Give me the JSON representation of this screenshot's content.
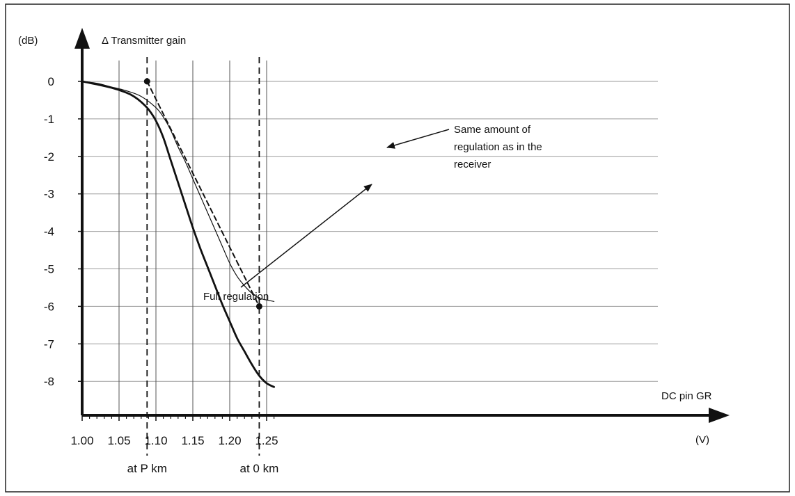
{
  "chart_data": {
    "type": "line",
    "title": "",
    "ylabel": "Δ Transmitter gain",
    "y_unit": "(dB)",
    "x_unit": "(V)",
    "xlabel": "DC pin GR",
    "xlim": [
      1.0,
      1.27
    ],
    "ylim": [
      -9.0,
      1.2
    ],
    "x_ticks": [
      {
        "value": 1.0,
        "label": "1.00"
      },
      {
        "value": 1.05,
        "label": "1.05"
      },
      {
        "value": 1.1,
        "label": "1.10"
      },
      {
        "value": 1.15,
        "label": "1.15"
      },
      {
        "value": 1.2,
        "label": "1.20"
      },
      {
        "value": 1.25,
        "label": "1.25"
      }
    ],
    "y_ticks": [
      {
        "value": 0,
        "label": "0"
      },
      {
        "value": -1,
        "label": "-1"
      },
      {
        "value": -2,
        "label": "-2"
      },
      {
        "value": -3,
        "label": "-3"
      },
      {
        "value": -4,
        "label": "-4"
      },
      {
        "value": -5,
        "label": "-5"
      },
      {
        "value": -6,
        "label": "-6"
      },
      {
        "value": -7,
        "label": "-7"
      },
      {
        "value": -8,
        "label": "-8"
      }
    ],
    "series": [
      {
        "name": "Full regulation",
        "style": "thick",
        "x": [
          1.0,
          1.02,
          1.04,
          1.06,
          1.07,
          1.08,
          1.09,
          1.1,
          1.11,
          1.12,
          1.13,
          1.14,
          1.15,
          1.16,
          1.17,
          1.18,
          1.19,
          1.2,
          1.21,
          1.22,
          1.23,
          1.24,
          1.25,
          1.26
        ],
        "y": [
          0,
          -0.08,
          -0.17,
          -0.3,
          -0.4,
          -0.55,
          -0.75,
          -1.05,
          -1.5,
          -2.1,
          -2.7,
          -3.3,
          -3.9,
          -4.45,
          -4.95,
          -5.45,
          -5.95,
          -6.4,
          -6.85,
          -7.2,
          -7.55,
          -7.85,
          -8.05,
          -8.15
        ]
      },
      {
        "name": "Same amount of regulation as in the receiver",
        "style": "thin",
        "x": [
          1.0,
          1.02,
          1.04,
          1.06,
          1.08,
          1.1,
          1.11,
          1.12,
          1.13,
          1.14,
          1.15,
          1.16,
          1.17,
          1.18,
          1.19,
          1.2,
          1.21,
          1.22,
          1.23,
          1.24,
          1.25,
          1.26
        ],
        "y": [
          0,
          -0.05,
          -0.15,
          -0.25,
          -0.4,
          -0.7,
          -0.95,
          -1.3,
          -1.75,
          -2.15,
          -2.6,
          -3.05,
          -3.5,
          -3.95,
          -4.4,
          -4.85,
          -5.2,
          -5.45,
          -5.65,
          -5.78,
          -5.83,
          -5.87
        ]
      },
      {
        "name": "",
        "style": "dashed",
        "x": [
          1.088,
          1.24
        ],
        "y": [
          0,
          -6
        ]
      }
    ],
    "vertical_markers": [
      {
        "x": 1.088,
        "label": "at P km"
      },
      {
        "x": 1.24,
        "label": "at 0 km"
      }
    ],
    "points": [
      {
        "x": 1.088,
        "y": 0
      },
      {
        "x": 1.24,
        "y": -6
      }
    ],
    "annotations": [
      {
        "lines": [
          "Same amount of",
          "regulation as in the",
          "receiver"
        ],
        "target": "thin-curve"
      },
      {
        "lines": [
          "Full regulation"
        ],
        "target": "thick-curve"
      }
    ],
    "grid": true
  }
}
